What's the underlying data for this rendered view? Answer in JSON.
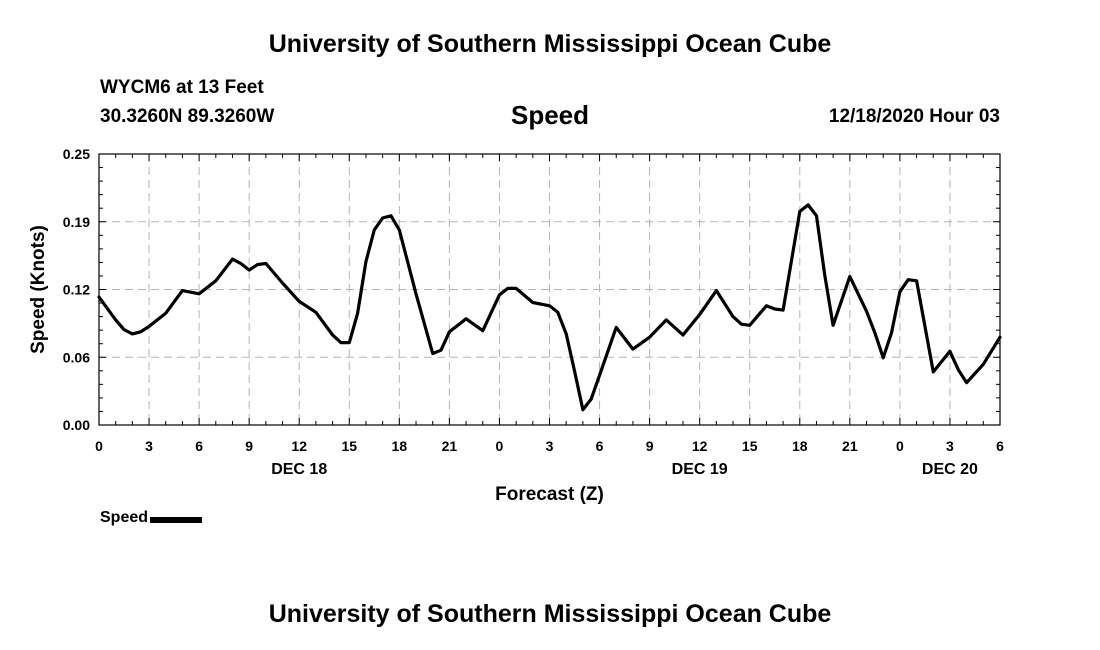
{
  "header": {
    "title": "University of Southern Mississippi Ocean Cube",
    "station": "WYCM6 at 13 Feet",
    "coordinates": "30.3260N 89.3260W",
    "subtitle": "Speed",
    "timestamp": "12/18/2020 Hour 03"
  },
  "footer": {
    "title": "University of Southern Mississippi Ocean Cube"
  },
  "legend": {
    "label": "Speed"
  },
  "chart_data": {
    "type": "line",
    "title": "Speed",
    "xlabel": "Forecast (Z)",
    "ylabel": "Speed (Knots)",
    "ylim": [
      0,
      0.25
    ],
    "xlim": [
      0,
      54
    ],
    "yticks": [
      "0.00",
      "0.06",
      "0.12",
      "0.19",
      "0.25"
    ],
    "ytick_values": [
      0,
      0.0625,
      0.125,
      0.1875,
      0.25
    ],
    "xticks": [
      "0",
      "3",
      "6",
      "9",
      "12",
      "15",
      "18",
      "21",
      "0",
      "3",
      "6",
      "9",
      "12",
      "15",
      "18",
      "21",
      "0",
      "3",
      "6"
    ],
    "day_labels": [
      {
        "label": "DEC 18",
        "hour": 12
      },
      {
        "label": "DEC 19",
        "hour": 36
      },
      {
        "label": "DEC 20",
        "hour": 51
      }
    ],
    "grid": true,
    "series": [
      {
        "name": "Speed",
        "color": "#000000",
        "x": [
          0,
          1,
          1.5,
          2,
          2.5,
          3,
          4,
          5,
          6,
          7,
          8,
          8.5,
          9,
          9.5,
          10,
          11,
          12,
          13,
          14,
          14.5,
          15,
          15.5,
          16,
          16.5,
          17,
          17.5,
          18,
          19,
          20,
          20.5,
          21,
          22,
          23,
          24,
          24.5,
          25,
          26,
          27,
          27.5,
          28,
          28.5,
          29,
          29.5,
          30,
          30.5,
          31,
          32,
          33,
          34,
          35,
          36,
          37,
          38,
          38.5,
          39,
          40,
          40.5,
          41,
          42,
          42.5,
          43,
          43.5,
          44,
          45,
          46,
          46.5,
          47,
          47.5,
          48,
          48.5,
          49,
          50,
          51,
          51.5,
          52,
          53,
          54
        ],
        "values": [
          0.118,
          0.097,
          0.088,
          0.084,
          0.086,
          0.091,
          0.103,
          0.124,
          0.121,
          0.133,
          0.153,
          0.149,
          0.143,
          0.148,
          0.149,
          0.131,
          0.114,
          0.104,
          0.083,
          0.076,
          0.076,
          0.103,
          0.151,
          0.18,
          0.191,
          0.193,
          0.18,
          0.121,
          0.066,
          0.069,
          0.086,
          0.098,
          0.087,
          0.12,
          0.126,
          0.126,
          0.113,
          0.11,
          0.104,
          0.084,
          0.05,
          0.014,
          0.024,
          0.046,
          0.068,
          0.09,
          0.07,
          0.081,
          0.097,
          0.083,
          0.102,
          0.124,
          0.1,
          0.093,
          0.092,
          0.11,
          0.107,
          0.106,
          0.197,
          0.203,
          0.193,
          0.138,
          0.092,
          0.137,
          0.105,
          0.085,
          0.062,
          0.085,
          0.123,
          0.134,
          0.133,
          0.049,
          0.068,
          0.051,
          0.039,
          0.056,
          0.081
        ]
      }
    ]
  }
}
